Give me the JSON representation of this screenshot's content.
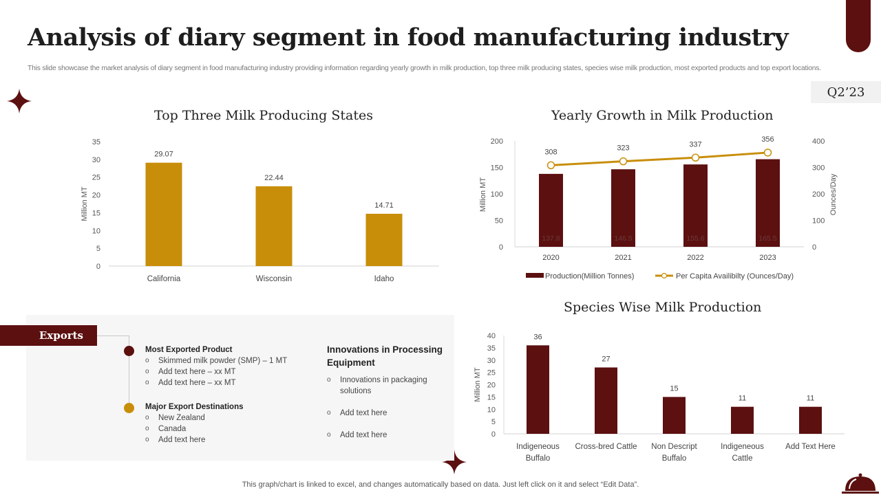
{
  "header": {
    "title": "Analysis of diary segment in food manufacturing industry",
    "subtitle": "This slide showcase the market analysis of diary segment in food manufacturing industry providing information regarding yearly growth in milk production, top three milk producing states, species wise milk production, most exported products and top export locations.",
    "quarter_badge": "Q2’23"
  },
  "colors": {
    "maroon": "#5c1010",
    "gold": "#c88e0a",
    "panel_bg": "#f6f6f6"
  },
  "chart_data": [
    {
      "id": "top-states",
      "type": "bar",
      "title": "Top Three Milk Producing States",
      "categories": [
        "California",
        "Wisconsin",
        "Idaho"
      ],
      "values": [
        29.07,
        22.44,
        14.71
      ],
      "data_labels": [
        "29.07",
        "22.44",
        "14.71"
      ],
      "xlabel": "",
      "ylabel": "Million MT",
      "ylim": [
        0,
        35
      ],
      "yticks": [
        0,
        5,
        10,
        15,
        20,
        25,
        30,
        35
      ],
      "color": "#c88e0a",
      "grid": false,
      "legend": "none"
    },
    {
      "id": "yearly-growth",
      "type": "bar",
      "title": "Yearly Growth in Milk Production",
      "categories": [
        "2020",
        "2021",
        "2022",
        "2023"
      ],
      "series": [
        {
          "name": "Production(Million Tonnes)",
          "kind": "bar",
          "axis": "left",
          "values": [
            137.8,
            146.5,
            155.6,
            165.5
          ],
          "data_labels": [
            "137.8",
            "146.5",
            "155.6",
            "165.5"
          ],
          "color": "#5c1010"
        },
        {
          "name": "Per Capita Availibilty (Ounces/Day)",
          "kind": "line",
          "axis": "right",
          "values": [
            308,
            323,
            337,
            356
          ],
          "data_labels": [
            "308",
            "323",
            "337",
            "356"
          ],
          "color": "#c88e0a"
        }
      ],
      "ylabel": "Million MT",
      "ylim": [
        0,
        200
      ],
      "yticks": [
        0,
        50,
        100,
        150,
        200
      ],
      "y2label": "Ounces/Day",
      "y2lim": [
        0,
        400
      ],
      "y2ticks": [
        0,
        100,
        200,
        300,
        400
      ],
      "grid": false,
      "legend": "bottom"
    },
    {
      "id": "species-wise",
      "type": "bar",
      "title": "Species Wise Milk Production",
      "categories": [
        [
          "Indigeneous",
          "Buffalo"
        ],
        [
          "Cross-bred Cattle"
        ],
        [
          "Non Descript",
          "Buffalo"
        ],
        [
          "Indigeneous",
          "Cattle"
        ],
        [
          "Add Text Here"
        ]
      ],
      "values": [
        36,
        27,
        15,
        11,
        11
      ],
      "data_labels": [
        "36",
        "27",
        "15",
        "11",
        "11"
      ],
      "ylabel": "Million MT",
      "ylim": [
        0,
        40
      ],
      "yticks": [
        0,
        5,
        10,
        15,
        20,
        25,
        30,
        35,
        40
      ],
      "color": "#5c1010",
      "grid": false,
      "legend": "none"
    }
  ],
  "exports": {
    "tag": "Exports",
    "most_exported": {
      "heading": "Most Exported Product",
      "items": [
        "Skimmed milk powder (SMP) – 1 MT",
        "Add text here – xx MT",
        "Add text here – xx MT"
      ]
    },
    "destinations": {
      "heading": "Major Export Destinations",
      "items": [
        "New Zealand",
        "Canada",
        "Add text here"
      ]
    },
    "innovations": {
      "heading": "Innovations in Processing Equipment",
      "items": [
        "Innovations in packaging solutions",
        "Add text here",
        "Add text here"
      ]
    },
    "bullet_glyph": "o"
  },
  "footer": {
    "note": "This graph/chart is linked to excel, and changes automatically based on data. Just left click on it and select “Edit Data”."
  },
  "icons": {
    "sparkle": "four-point-star",
    "cloche": "serving-cloche"
  }
}
